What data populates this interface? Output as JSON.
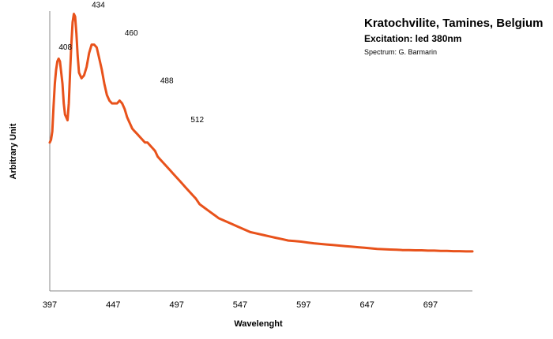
{
  "chart_data": {
    "type": "line",
    "title": "Kratochvilite, Tamines, Belgium",
    "subtitle": "Excitation: led 380nm",
    "credit": "Spectrum: G. Barmarin",
    "xlabel": "Wavelenght",
    "ylabel": "Arbitrary Unit",
    "xlim": [
      397,
      730
    ],
    "ylim": [
      0,
      1
    ],
    "xticks": [
      397,
      447,
      497,
      547,
      597,
      647,
      697
    ],
    "grid": false,
    "line_color": "#e8521b",
    "series": [
      {
        "x": [
          397,
          398,
          399,
          400,
          401,
          402,
          403,
          404,
          405,
          406,
          407,
          408,
          409,
          410,
          411,
          412,
          413,
          414,
          415,
          416,
          417,
          418,
          419,
          420,
          422,
          424,
          426,
          428,
          430,
          432,
          434,
          436,
          438,
          440,
          442,
          444,
          446,
          448,
          450,
          452,
          454,
          456,
          458,
          460,
          462,
          464,
          466,
          468,
          470,
          472,
          474,
          476,
          478,
          480,
          482,
          484,
          486,
          488,
          490,
          492,
          494,
          496,
          498,
          500,
          502,
          504,
          506,
          508,
          510,
          512,
          515,
          518,
          521,
          524,
          527,
          530,
          535,
          540,
          545,
          550,
          555,
          560,
          565,
          570,
          575,
          580,
          585,
          590,
          595,
          600,
          605,
          610,
          615,
          620,
          625,
          630,
          635,
          640,
          645,
          650,
          655,
          660,
          665,
          670,
          675,
          680,
          685,
          690,
          695,
          700,
          705,
          710,
          715,
          720,
          725,
          730
        ],
        "y": [
          0.53,
          0.54,
          0.57,
          0.66,
          0.74,
          0.79,
          0.82,
          0.83,
          0.82,
          0.78,
          0.74,
          0.67,
          0.63,
          0.62,
          0.61,
          0.67,
          0.78,
          0.88,
          0.96,
          0.99,
          0.98,
          0.92,
          0.84,
          0.78,
          0.76,
          0.77,
          0.8,
          0.85,
          0.88,
          0.88,
          0.87,
          0.83,
          0.79,
          0.74,
          0.7,
          0.68,
          0.67,
          0.67,
          0.67,
          0.68,
          0.67,
          0.65,
          0.62,
          0.6,
          0.58,
          0.57,
          0.56,
          0.55,
          0.54,
          0.53,
          0.53,
          0.52,
          0.51,
          0.5,
          0.48,
          0.47,
          0.46,
          0.45,
          0.44,
          0.43,
          0.42,
          0.41,
          0.4,
          0.39,
          0.38,
          0.37,
          0.36,
          0.35,
          0.34,
          0.33,
          0.31,
          0.3,
          0.29,
          0.28,
          0.27,
          0.26,
          0.25,
          0.24,
          0.23,
          0.22,
          0.21,
          0.205,
          0.2,
          0.195,
          0.19,
          0.185,
          0.18,
          0.178,
          0.176,
          0.173,
          0.17,
          0.168,
          0.166,
          0.164,
          0.162,
          0.16,
          0.158,
          0.156,
          0.154,
          0.152,
          0.15,
          0.149,
          0.148,
          0.147,
          0.146,
          0.146,
          0.145,
          0.145,
          0.144,
          0.144,
          0.143,
          0.143,
          0.142,
          0.142,
          0.141,
          0.141
        ]
      }
    ],
    "annotations": [
      {
        "label": "408",
        "x": 408,
        "y": 0.84
      },
      {
        "label": "434",
        "x": 434,
        "y": 0.99
      },
      {
        "label": "460",
        "x": 460,
        "y": 0.89
      },
      {
        "label": "488",
        "x": 488,
        "y": 0.72
      },
      {
        "label": "512",
        "x": 512,
        "y": 0.58
      }
    ]
  }
}
